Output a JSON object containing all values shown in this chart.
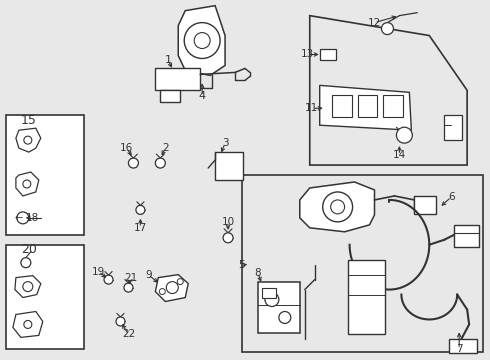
{
  "bg_color": "#e8e8e8",
  "box_fill": "#e8e8e8",
  "white_fill": "#ffffff",
  "line_color": "#333333",
  "fig_width": 4.9,
  "fig_height": 3.6,
  "dpi": 100
}
